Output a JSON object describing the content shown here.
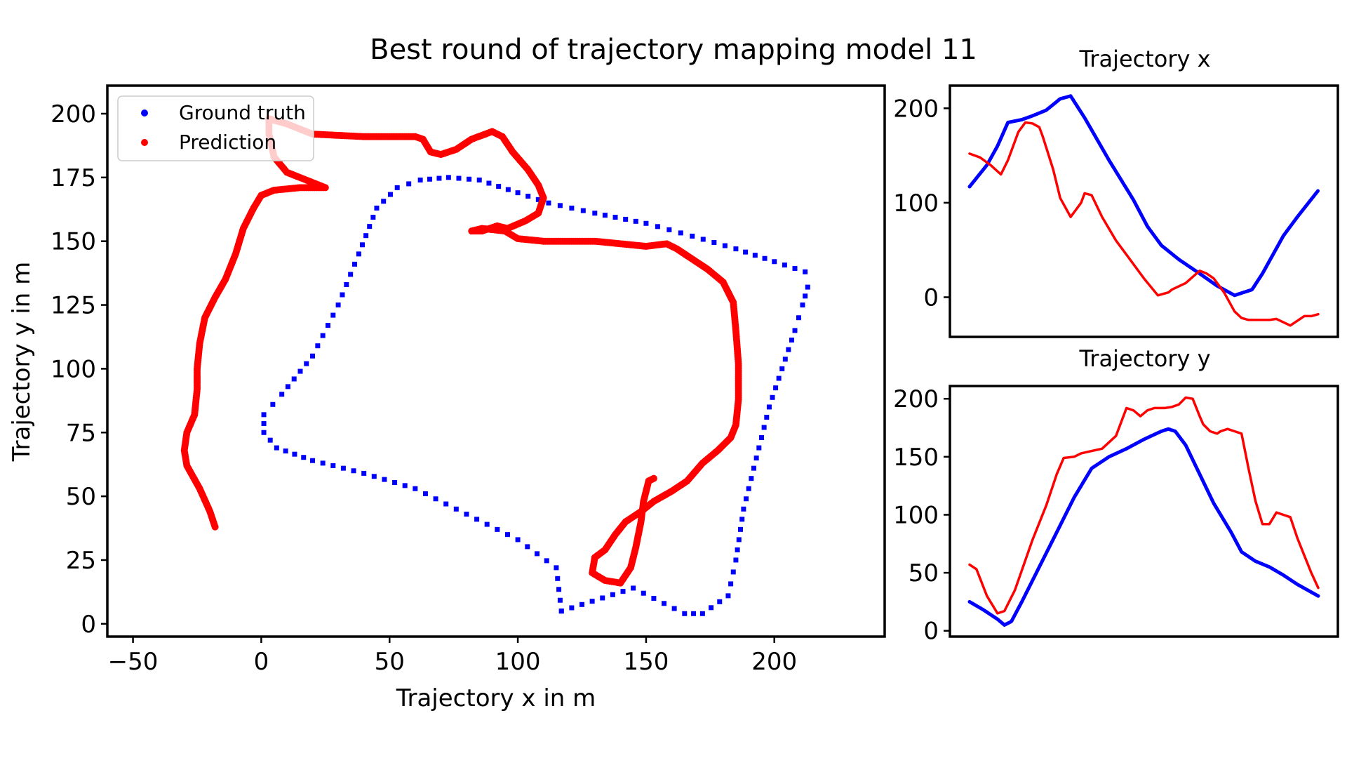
{
  "figure": {
    "suptitle": "Best round of trajectory mapping model 11"
  },
  "colors": {
    "ground_truth": "#0000ff",
    "prediction": "#ff0000",
    "axes": "#000000"
  },
  "chart_data": [
    {
      "type": "scatter",
      "panel": "main",
      "title": "",
      "xlabel": "Trajectory x in m",
      "ylabel": "Trajectory y in m",
      "xlim": [
        -60,
        243
      ],
      "ylim": [
        -5,
        211
      ],
      "xticks": [
        -50,
        0,
        50,
        100,
        150,
        200
      ],
      "xtick_labels": [
        "−50",
        "0",
        "50",
        "100",
        "150",
        "200"
      ],
      "yticks": [
        0,
        25,
        50,
        75,
        100,
        125,
        150,
        175,
        200
      ],
      "yticklabels": [
        "0",
        "25",
        "50",
        "75",
        "100",
        "125",
        "150",
        "175",
        "200"
      ],
      "legend": {
        "placement": "upper-left",
        "entries": [
          "Ground truth",
          "Prediction"
        ]
      },
      "series": [
        {
          "name": "Ground truth",
          "color": "#0000ff",
          "points": [
            [
              117,
              5
            ],
            [
              145,
              14
            ],
            [
              165,
              4
            ],
            [
              172,
              4
            ],
            [
              182,
              11
            ],
            [
              185,
              25
            ],
            [
              188,
              45
            ],
            [
              193,
              65
            ],
            [
              198,
              85
            ],
            [
              203,
              100
            ],
            [
              208,
              115
            ],
            [
              211,
              125
            ],
            [
              213,
              132
            ],
            [
              212,
              138
            ],
            [
              200,
              142
            ],
            [
              185,
              147
            ],
            [
              168,
              152
            ],
            [
              150,
              157
            ],
            [
              130,
              161
            ],
            [
              112,
              165
            ],
            [
              100,
              169
            ],
            [
              85,
              174
            ],
            [
              73,
              175
            ],
            [
              62,
              174
            ],
            [
              53,
              171
            ],
            [
              45,
              163
            ],
            [
              38,
              145
            ],
            [
              30,
              125
            ],
            [
              20,
              105
            ],
            [
              8,
              90
            ],
            [
              1,
              82
            ],
            [
              1,
              75
            ],
            [
              6,
              69
            ],
            [
              20,
              64
            ],
            [
              40,
              59
            ],
            [
              60,
              53
            ],
            [
              80,
              43
            ],
            [
              100,
              33
            ],
            [
              115,
              22
            ],
            [
              117,
              5
            ]
          ]
        },
        {
          "name": "Prediction",
          "color": "#ff0000",
          "points": [
            [
              -18,
              38
            ],
            [
              -20,
              44
            ],
            [
              -24,
              53
            ],
            [
              -29,
              62
            ],
            [
              -30,
              68
            ],
            [
              -29,
              75
            ],
            [
              -26,
              82
            ],
            [
              -25,
              92
            ],
            [
              -25,
              100
            ],
            [
              -24,
              110
            ],
            [
              -22,
              120
            ],
            [
              -18,
              128
            ],
            [
              -14,
              135
            ],
            [
              -10,
              145
            ],
            [
              -7,
              155
            ],
            [
              -3,
              163
            ],
            [
              0,
              168
            ],
            [
              5,
              170
            ],
            [
              15,
              171
            ],
            [
              25,
              171
            ],
            [
              20,
              173
            ],
            [
              10,
              177
            ],
            [
              5,
              183
            ],
            [
              3,
              192
            ],
            [
              3,
              198
            ],
            [
              10,
              196
            ],
            [
              20,
              192
            ],
            [
              40,
              191
            ],
            [
              55,
              191
            ],
            [
              60,
              191
            ],
            [
              63,
              190
            ],
            [
              66,
              185
            ],
            [
              70,
              184
            ],
            [
              76,
              186
            ],
            [
              82,
              190
            ],
            [
              90,
              193
            ],
            [
              94,
              191
            ],
            [
              98,
              185
            ],
            [
              104,
              178
            ],
            [
              108,
              172
            ],
            [
              110,
              167
            ],
            [
              108,
              161
            ],
            [
              103,
              158
            ],
            [
              96,
              155
            ],
            [
              92,
              156
            ],
            [
              86,
              154
            ],
            [
              82,
              154
            ],
            [
              86,
              155
            ],
            [
              95,
              154
            ],
            [
              100,
              151
            ],
            [
              110,
              150
            ],
            [
              120,
              150
            ],
            [
              130,
              150
            ],
            [
              140,
              149
            ],
            [
              150,
              148
            ],
            [
              158,
              149
            ],
            [
              162,
              147
            ],
            [
              168,
              143
            ],
            [
              174,
              139
            ],
            [
              180,
              134
            ],
            [
              184,
              126
            ],
            [
              185,
              115
            ],
            [
              186,
              102
            ],
            [
              186,
              88
            ],
            [
              185,
              78
            ],
            [
              183,
              73
            ],
            [
              178,
              68
            ],
            [
              172,
              63
            ],
            [
              166,
              56
            ],
            [
              160,
              52
            ],
            [
              153,
              48
            ],
            [
              148,
              44
            ],
            [
              142,
              40
            ],
            [
              138,
              35
            ],
            [
              134,
              29
            ],
            [
              130,
              26
            ],
            [
              129,
              20
            ],
            [
              134,
              17
            ],
            [
              140,
              16
            ],
            [
              144,
              22
            ],
            [
              146,
              30
            ],
            [
              148,
              40
            ],
            [
              149,
              48
            ],
            [
              151,
              56
            ],
            [
              153,
              57
            ]
          ]
        }
      ]
    },
    {
      "type": "line",
      "panel": "top-right",
      "title": "Trajectory x",
      "xlabel": "",
      "ylabel": "",
      "xlim": [
        0,
        100
      ],
      "ylim": [
        -42,
        224
      ],
      "yticks": [
        0,
        100,
        200
      ],
      "yticklabels": [
        "0",
        "100",
        "200"
      ],
      "series": [
        {
          "name": "Ground truth",
          "color": "#0000ff",
          "x": [
            0,
            5,
            8,
            11,
            15,
            18,
            22,
            26,
            29,
            33,
            40,
            47,
            51,
            55,
            60,
            66,
            71,
            76,
            81,
            84,
            87,
            90,
            94,
            100
          ],
          "y": [
            117,
            140,
            160,
            185,
            188,
            192,
            198,
            210,
            213,
            190,
            145,
            103,
            75,
            55,
            40,
            25,
            12,
            2,
            8,
            25,
            45,
            65,
            85,
            113
          ]
        },
        {
          "name": "Prediction",
          "color": "#ff0000",
          "x": [
            0,
            3,
            6,
            9,
            11,
            14,
            16,
            18,
            20,
            21,
            24,
            26,
            29,
            32,
            33,
            35,
            38,
            42,
            46,
            50,
            54,
            57,
            58,
            62,
            66,
            68,
            70,
            73,
            76,
            78,
            80,
            82,
            84,
            86,
            88,
            92,
            96,
            98,
            100
          ],
          "y": [
            152,
            148,
            140,
            130,
            145,
            175,
            185,
            184,
            180,
            170,
            135,
            105,
            85,
            100,
            110,
            108,
            85,
            60,
            40,
            20,
            2,
            5,
            8,
            15,
            28,
            25,
            20,
            5,
            -15,
            -22,
            -24,
            -24,
            -24,
            -24,
            -23,
            -30,
            -20,
            -20,
            -18
          ]
        }
      ]
    },
    {
      "type": "line",
      "panel": "bottom-right",
      "title": "Trajectory y",
      "xlabel": "",
      "ylabel": "",
      "xlim": [
        0,
        100
      ],
      "ylim": [
        -5,
        211
      ],
      "yticks": [
        0,
        50,
        100,
        150,
        200
      ],
      "yticklabels": [
        "0",
        "50",
        "100",
        "150",
        "200"
      ],
      "series": [
        {
          "name": "Ground truth",
          "color": "#0000ff",
          "x": [
            0,
            4,
            8,
            10,
            12,
            15,
            20,
            25,
            30,
            35,
            40,
            45,
            50,
            55,
            57,
            59,
            62,
            66,
            70,
            75,
            78,
            82,
            86,
            90,
            94,
            100
          ],
          "y": [
            25,
            18,
            10,
            5,
            8,
            25,
            55,
            85,
            115,
            140,
            150,
            157,
            165,
            172,
            174,
            172,
            160,
            135,
            110,
            85,
            68,
            60,
            55,
            48,
            40,
            30
          ]
        },
        {
          "name": "Prediction",
          "color": "#ff0000",
          "x": [
            0,
            2,
            5,
            8,
            10,
            13,
            18,
            22,
            25,
            27,
            30,
            32,
            35,
            38,
            42,
            45,
            47,
            49,
            51,
            53,
            56,
            58,
            60,
            62,
            64,
            66,
            67,
            69,
            71,
            72,
            74,
            76,
            78,
            80,
            82,
            84,
            86,
            88,
            90,
            92,
            94,
            96,
            98,
            100
          ],
          "y": [
            57,
            53,
            30,
            15,
            17,
            35,
            78,
            108,
            135,
            149,
            150,
            153,
            155,
            157,
            168,
            192,
            190,
            185,
            190,
            192,
            192,
            193,
            195,
            201,
            200,
            185,
            178,
            172,
            170,
            172,
            174,
            172,
            170,
            140,
            112,
            92,
            92,
            102,
            100,
            98,
            80,
            65,
            50,
            37
          ]
        }
      ]
    }
  ]
}
